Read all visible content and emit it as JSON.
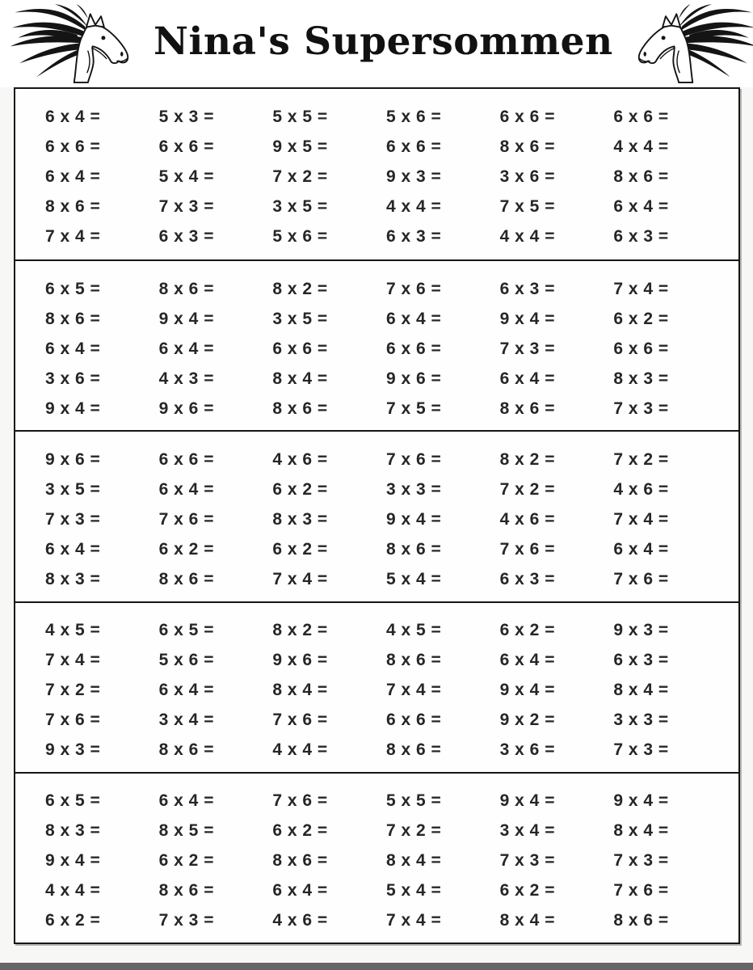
{
  "header": {
    "title": "Nina's Supersommen",
    "left_icon": "horse-head-facing-right",
    "right_icon": "horse-head-facing-left"
  },
  "colors": {
    "table_border": "#161616",
    "problem_text": "#262626",
    "sheet_background": "#fefefe",
    "page_background": "#f7f7f6",
    "bottom_bar": "#666666"
  },
  "worksheet": {
    "columns": 6,
    "operator": "x",
    "equals_sign": "=",
    "sections": [
      {
        "rows": [
          [
            "6 x 4 =",
            "5 x 3 =",
            "5 x 5 =",
            "5 x 6 =",
            "6 x 6 =",
            "6 x 6 ="
          ],
          [
            "6 x 6 =",
            "6 x 6 =",
            "9 x 5 =",
            "6 x 6 =",
            "8 x 6 =",
            "4 x 4 ="
          ],
          [
            "6 x 4 =",
            "5 x 4 =",
            "7 x 2 =",
            "9 x 3 =",
            "3 x 6 =",
            "8 x 6 ="
          ],
          [
            "8 x 6 =",
            "7 x 3 =",
            "3 x 5 =",
            "4 x 4 =",
            "7 x 5 =",
            "6 x 4 ="
          ],
          [
            "7 x 4 =",
            "6 x 3 =",
            "5 x 6 =",
            "6 x 3 =",
            "4 x 4 =",
            "6 x 3 ="
          ]
        ]
      },
      {
        "rows": [
          [
            "6 x 5 =",
            "8 x 6 =",
            "8 x 2 =",
            "7 x 6 =",
            "6 x 3 =",
            "7 x 4 ="
          ],
          [
            "8 x 6 =",
            "9 x 4 =",
            "3 x 5 =",
            "6 x 4 =",
            "9 x 4 =",
            "6 x 2 ="
          ],
          [
            "6 x 4 =",
            "6 x 4 =",
            "6 x 6 =",
            "6 x 6 =",
            "7 x 3 =",
            "6 x 6 ="
          ],
          [
            "3 x 6 =",
            "4 x 3 =",
            "8 x 4 =",
            "9 x 6 =",
            "6 x 4 =",
            "8 x 3 ="
          ],
          [
            "9 x 4 =",
            "9 x 6 =",
            "8 x 6 =",
            "7 x 5 =",
            "8 x 6 =",
            "7 x 3 ="
          ]
        ]
      },
      {
        "rows": [
          [
            "9 x 6 =",
            "6 x 6 =",
            "4 x 6 =",
            "7 x 6 =",
            "8 x 2 =",
            "7 x 2 ="
          ],
          [
            "3 x 5 =",
            "6 x 4 =",
            "6 x 2 =",
            "3 x 3 =",
            "7 x 2 =",
            "4 x 6 ="
          ],
          [
            "7 x 3 =",
            "7 x 6 =",
            "8 x 3 =",
            "9 x 4 =",
            "4 x 6 =",
            "7 x 4 ="
          ],
          [
            "6 x 4 =",
            "6 x 2 =",
            "6 x 2 =",
            "8 x 6 =",
            "7 x 6 =",
            "6 x 4 ="
          ],
          [
            "8 x 3 =",
            "8 x 6 =",
            "7 x 4 =",
            "5 x 4 =",
            "6 x 3 =",
            "7 x 6 ="
          ]
        ]
      },
      {
        "rows": [
          [
            "4 x 5 =",
            "6 x 5 =",
            "8 x 2 =",
            "4 x 5 =",
            "6 x 2 =",
            "9 x 3 ="
          ],
          [
            "7 x 4 =",
            "5 x 6 =",
            "9 x 6 =",
            "8 x 6 =",
            "6 x 4 =",
            "6 x 3 ="
          ],
          [
            "7 x 2 =",
            "6 x 4 =",
            "8 x 4 =",
            "7 x 4 =",
            "9 x 4 =",
            "8 x 4 ="
          ],
          [
            "7 x 6 =",
            "3 x 4 =",
            "7 x 6 =",
            "6 x 6 =",
            "9 x 2 =",
            "3 x 3 ="
          ],
          [
            "9 x 3 =",
            "8 x 6 =",
            "4 x 4 =",
            "8 x 6 =",
            "3 x 6 =",
            "7 x 3 ="
          ]
        ]
      },
      {
        "rows": [
          [
            "6 x 5 =",
            "6 x 4 =",
            "7 x 6 =",
            "5 x 5 =",
            "9 x 4 =",
            "9 x 4 ="
          ],
          [
            "8 x 3 =",
            "8 x 5 =",
            "6 x 2 =",
            "7 x 2 =",
            "3 x 4 =",
            "8 x 4 ="
          ],
          [
            "9 x 4 =",
            "6 x 2 =",
            "8 x 6 =",
            "8 x 4 =",
            "7 x 3 =",
            "7 x 3 ="
          ],
          [
            "4 x 4 =",
            "8 x 6 =",
            "6 x 4 =",
            "5 x 4 =",
            "6 x 2 =",
            "7 x 6 ="
          ],
          [
            "6 x 2 =",
            "7 x 3 =",
            "4 x 6 =",
            "7 x 4 =",
            "8 x 4 =",
            "8 x 6 ="
          ]
        ]
      }
    ]
  }
}
